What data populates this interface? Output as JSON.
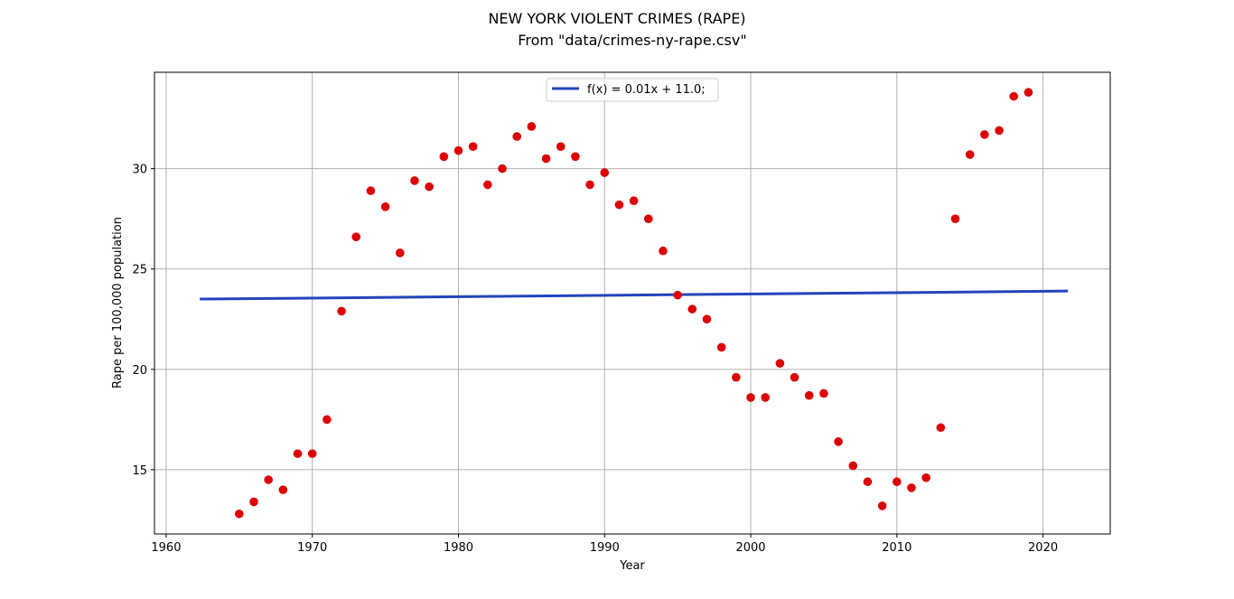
{
  "chart_data": {
    "type": "scatter",
    "title": "NEW YORK VIOLENT CRIMES (RAPE)",
    "subtitle": "From \"data/crimes-ny-rape.csv\"",
    "xlabel": "Year",
    "ylabel": "Rape per 100,000 population",
    "xlim": [
      1959.2,
      2024.6
    ],
    "ylim": [
      11.8,
      34.8
    ],
    "xticks": [
      1960,
      1970,
      1980,
      1990,
      2000,
      2010,
      2020
    ],
    "yticks": [
      15,
      20,
      25,
      30
    ],
    "grid": true,
    "legend": {
      "placement": "upper-center",
      "entries": [
        "f(x) = 0.01x + 11.0;"
      ]
    },
    "point_color": "#dd0000",
    "line_color": "#2244bb",
    "series": [
      {
        "type": "scatter",
        "x": [
          1965,
          1966,
          1967,
          1968,
          1969,
          1970,
          1971,
          1972,
          1973,
          1974,
          1975,
          1976,
          1977,
          1978,
          1979,
          1980,
          1981,
          1982,
          1983,
          1984,
          1985,
          1986,
          1987,
          1988,
          1989,
          1990,
          1991,
          1992,
          1993,
          1994,
          1995,
          1996,
          1997,
          1998,
          1999,
          2000,
          2001,
          2002,
          2003,
          2004,
          2005,
          2006,
          2007,
          2008,
          2009,
          2010,
          2011,
          2012,
          2013,
          2014,
          2015,
          2016,
          2017,
          2018,
          2019
        ],
        "y": [
          12.8,
          13.4,
          14.5,
          14.0,
          15.8,
          15.8,
          17.5,
          22.9,
          26.6,
          28.9,
          28.1,
          25.8,
          29.4,
          29.1,
          30.6,
          30.9,
          31.1,
          29.2,
          30.0,
          31.6,
          32.1,
          30.5,
          31.1,
          30.6,
          29.2,
          29.8,
          28.2,
          28.4,
          27.5,
          25.9,
          23.7,
          23.0,
          22.5,
          21.1,
          19.6,
          18.6,
          18.6,
          20.3,
          19.6,
          18.7,
          18.8,
          16.4,
          15.2,
          14.4,
          13.2,
          14.4,
          14.1,
          14.6,
          17.1,
          27.5,
          30.7,
          31.7,
          31.9,
          33.6,
          33.8
        ]
      },
      {
        "type": "line",
        "name": "f(x) = 0.01x + 11.0;",
        "x": [
          1962.3,
          2021.7
        ],
        "y": [
          23.5,
          23.9
        ]
      }
    ]
  }
}
